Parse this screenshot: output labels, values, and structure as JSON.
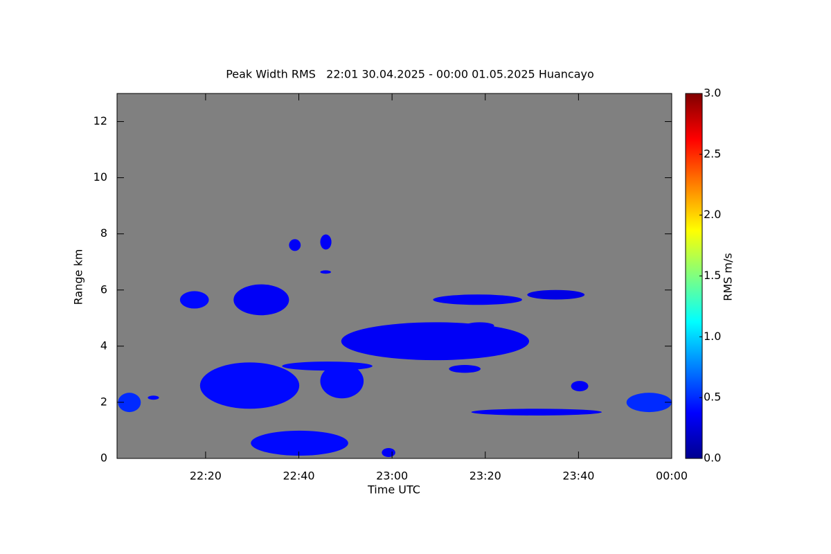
{
  "chart_data": {
    "type": "time-height",
    "title": "Peak Width RMS   22:01 30.04.2025 - 00:00 01.05.2025 Huancayo",
    "x_label": "Time UTC",
    "y_label": "Range km",
    "colorbar_label": "RMS m/s",
    "background": "#808080",
    "xlim": [
      1321,
      1440
    ],
    "xticks": [
      {
        "value": 1340,
        "label": "22:20"
      },
      {
        "value": 1360,
        "label": "22:40"
      },
      {
        "value": 1380,
        "label": "23:00"
      },
      {
        "value": 1400,
        "label": "23:20"
      },
      {
        "value": 1420,
        "label": "23:40"
      },
      {
        "value": 1440,
        "label": "00:00"
      }
    ],
    "ylim": [
      0,
      13
    ],
    "yticks": [
      0,
      2,
      4,
      6,
      8,
      10,
      12
    ],
    "clim": [
      0,
      3
    ],
    "cticks": [
      {
        "value": 0,
        "label": "0.0"
      },
      {
        "value": 0.5,
        "label": "0.5"
      },
      {
        "value": 1,
        "label": "1.0"
      },
      {
        "value": 1.5,
        "label": "1.5"
      },
      {
        "value": 2,
        "label": "2.0"
      },
      {
        "value": 2.5,
        "label": "2.5"
      },
      {
        "value": 3,
        "label": "3.0"
      }
    ],
    "colormap": "jet",
    "echoes": [
      {
        "x": [
          1321.2,
          1326.1
        ],
        "y": [
          1.65,
          2.34
        ],
        "value": 0.5
      },
      {
        "x": [
          1327.6,
          1330
        ],
        "y": [
          2.09,
          2.24
        ],
        "value": 0.4
      },
      {
        "x": [
          1334.5,
          1340.7
        ],
        "y": [
          5.34,
          5.96
        ],
        "value": 0.4
      },
      {
        "x": [
          1346,
          1357.9
        ],
        "y": [
          5.1,
          6.2
        ],
        "value": 0.35
      },
      {
        "x": [
          1338.8,
          1360.1
        ],
        "y": [
          1.77,
          3.42
        ],
        "value": 0.4
      },
      {
        "x": [
          1356.4,
          1375.8
        ],
        "y": [
          3.13,
          3.45
        ],
        "value": 0.4
      },
      {
        "x": [
          1364.6,
          1373.9
        ],
        "y": [
          2.14,
          3.37
        ],
        "value": 0.4
      },
      {
        "x": [
          1349.7,
          1370.6
        ],
        "y": [
          0.1,
          0.99
        ],
        "value": 0.4
      },
      {
        "x": [
          1377.8,
          1380.7
        ],
        "y": [
          0.05,
          0.37
        ],
        "value": 0.35
      },
      {
        "x": [
          1357.9,
          1360.4
        ],
        "y": [
          7.39,
          7.81
        ],
        "value": 0.35
      },
      {
        "x": [
          1364.6,
          1367
        ],
        "y": [
          7.44,
          7.98
        ],
        "value": 0.35
      },
      {
        "x": [
          1369.1,
          1409.4
        ],
        "y": [
          3.5,
          4.85
        ],
        "value": 0.35
      },
      {
        "x": [
          1392.2,
          1399
        ],
        "y": [
          3.05,
          3.33
        ],
        "value": 0.35
      },
      {
        "x": [
          1388.8,
          1407.9
        ],
        "y": [
          5.47,
          5.84
        ],
        "value": 0.35
      },
      {
        "x": [
          1409,
          1421.3
        ],
        "y": [
          5.66,
          6.0
        ],
        "value": 0.3
      },
      {
        "x": [
          1418.4,
          1422.1
        ],
        "y": [
          2.39,
          2.76
        ],
        "value": 0.35
      },
      {
        "x": [
          1397,
          1425
        ],
        "y": [
          1.53,
          1.77
        ],
        "value": 0.35
      },
      {
        "x": [
          1430.3,
          1440
        ],
        "y": [
          1.65,
          2.34
        ],
        "value": 0.5
      },
      {
        "x": [
          1395.7,
          1401.9
        ],
        "y": [
          4.61,
          4.85
        ],
        "value": 0.35
      },
      {
        "x": [
          1364.6,
          1366.9
        ],
        "y": [
          6.58,
          6.7
        ],
        "value": 0.35
      }
    ]
  }
}
